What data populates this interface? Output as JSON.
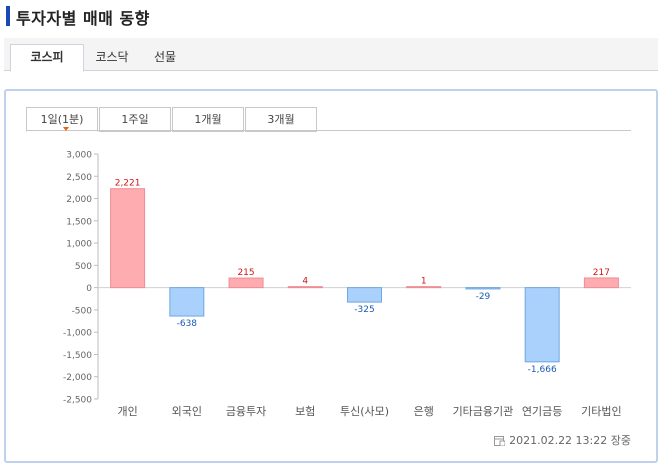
{
  "header": {
    "title": "투자자별 매매 동향"
  },
  "market_tabs": [
    {
      "label": "코스피",
      "active": true
    },
    {
      "label": "코스닥",
      "active": false
    },
    {
      "label": "선물",
      "active": false
    }
  ],
  "period_tabs": [
    {
      "label": "1일(1분)",
      "active": true
    },
    {
      "label": "1주일",
      "active": false
    },
    {
      "label": "1개월",
      "active": false
    },
    {
      "label": "3개월",
      "active": false
    }
  ],
  "timestamp": "2021.02.22 13:22 장중",
  "chart_data": {
    "type": "bar",
    "title": "",
    "xlabel": "",
    "ylabel": "",
    "categories": [
      "개인",
      "외국인",
      "금융투자",
      "보험",
      "투신(사모)",
      "은행",
      "기타금융기관",
      "연기금등",
      "기타법인"
    ],
    "values": [
      2221,
      -638,
      215,
      4,
      -325,
      1,
      -29,
      -1666,
      217
    ],
    "value_labels": [
      "2,221",
      "-638",
      "215",
      "4",
      "-325",
      "1",
      "-29",
      "-1,666",
      "217"
    ],
    "ylim": [
      -2500,
      3000
    ],
    "yticks": [
      3000,
      2500,
      2000,
      1500,
      1000,
      500,
      0,
      -500,
      -1000,
      -1500,
      -2000,
      -2500
    ],
    "ytick_labels": [
      "3,000",
      "2,500",
      "2,000",
      "1,500",
      "1,000",
      "500",
      "0",
      "-500",
      "-1,000",
      "-1,500",
      "-2,000",
      "-2,500"
    ],
    "grid": false,
    "colors": {
      "positive_fill": "#ffacb1",
      "positive_stroke": "#ee8c94",
      "negative_fill": "#a9d1fb",
      "negative_stroke": "#6fa7e0",
      "positive_label": "#d11515",
      "negative_label": "#1a5bb5"
    }
  }
}
